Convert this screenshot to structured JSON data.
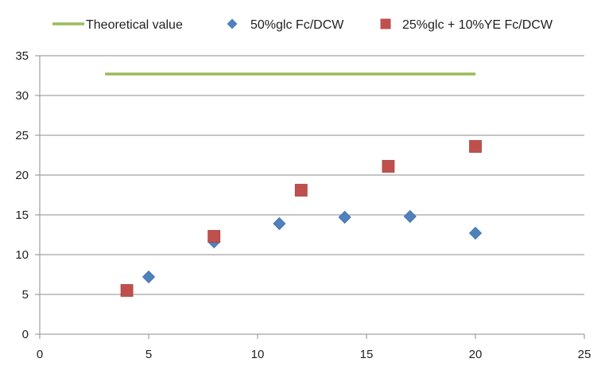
{
  "chart_data": {
    "type": "scatter",
    "title": "",
    "xlabel": "",
    "ylabel": "",
    "xlim": [
      0,
      25
    ],
    "ylim": [
      0,
      35
    ],
    "xticks": [
      0,
      5,
      10,
      15,
      20,
      25
    ],
    "yticks": [
      0,
      5,
      10,
      15,
      20,
      25,
      30,
      35
    ],
    "grid": "horizontal",
    "legend_position": "top",
    "series": [
      {
        "name": "Theoretical value",
        "kind": "line",
        "color": "#9bbb59",
        "x": [
          3,
          20
        ],
        "y": [
          32.7,
          32.7
        ]
      },
      {
        "name": "50%glc Fc/DCW",
        "kind": "scatter",
        "marker": "diamond",
        "color": "#4f81bd",
        "x": [
          5,
          8,
          11,
          14,
          17,
          20
        ],
        "y": [
          7.2,
          11.6,
          13.9,
          14.7,
          14.8,
          12.7
        ]
      },
      {
        "name": "25%glc + 10%YE Fc/DCW",
        "kind": "scatter",
        "marker": "square",
        "color": "#c0504d",
        "x": [
          4,
          8,
          12,
          16,
          20
        ],
        "y": [
          5.5,
          12.3,
          18.1,
          21.1,
          23.6
        ]
      }
    ]
  }
}
